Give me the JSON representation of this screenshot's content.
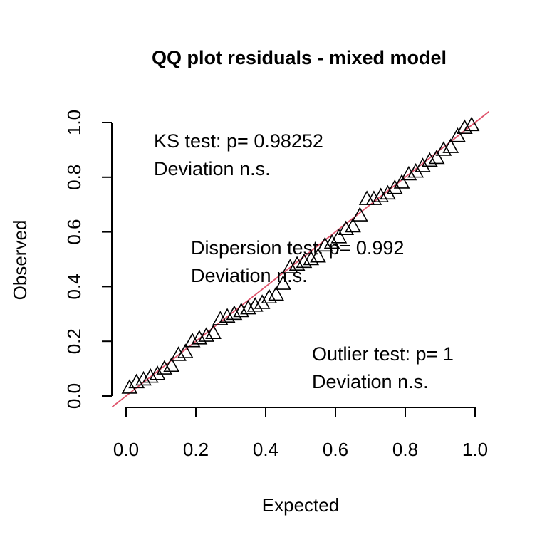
{
  "chart_data": {
    "type": "scatter",
    "title": "QQ plot residuals - mixed model",
    "xlabel": "Expected",
    "ylabel": "Observed",
    "xlim": [
      0,
      1
    ],
    "ylim": [
      0,
      1
    ],
    "x_ticks": [
      "0.0",
      "0.2",
      "0.4",
      "0.6",
      "0.8",
      "1.0"
    ],
    "y_ticks": [
      "0.0",
      "0.2",
      "0.4",
      "0.6",
      "0.8",
      "1.0"
    ],
    "grid": false,
    "marker": "open-triangle",
    "reference_line": {
      "from": [
        0,
        0
      ],
      "to": [
        1,
        1
      ],
      "color": "#DF536B"
    },
    "annotations": {
      "ks": {
        "line1": "KS test: p= 0.98252",
        "line2": "Deviation  n.s."
      },
      "dispersion": {
        "line1": "Dispersion test: p= 0.992",
        "line2": "Deviation  n.s."
      },
      "outlier": {
        "line1": "Outlier test: p= 1",
        "line2": "Deviation  n.s."
      }
    },
    "points": {
      "x": [
        0.01,
        0.03,
        0.05,
        0.07,
        0.09,
        0.11,
        0.13,
        0.15,
        0.17,
        0.19,
        0.21,
        0.23,
        0.25,
        0.27,
        0.29,
        0.31,
        0.33,
        0.35,
        0.37,
        0.39,
        0.41,
        0.43,
        0.45,
        0.47,
        0.49,
        0.51,
        0.53,
        0.55,
        0.57,
        0.59,
        0.61,
        0.63,
        0.65,
        0.67,
        0.69,
        0.71,
        0.73,
        0.75,
        0.77,
        0.79,
        0.81,
        0.83,
        0.85,
        0.87,
        0.89,
        0.91,
        0.93,
        0.95,
        0.97,
        0.99
      ],
      "y": [
        0.03,
        0.05,
        0.06,
        0.07,
        0.08,
        0.1,
        0.11,
        0.15,
        0.16,
        0.2,
        0.21,
        0.22,
        0.23,
        0.28,
        0.29,
        0.3,
        0.31,
        0.32,
        0.33,
        0.34,
        0.36,
        0.37,
        0.41,
        0.47,
        0.48,
        0.49,
        0.5,
        0.51,
        0.55,
        0.56,
        0.58,
        0.61,
        0.62,
        0.66,
        0.72,
        0.72,
        0.73,
        0.74,
        0.76,
        0.78,
        0.81,
        0.82,
        0.84,
        0.86,
        0.87,
        0.9,
        0.91,
        0.95,
        0.98,
        0.99
      ]
    }
  }
}
